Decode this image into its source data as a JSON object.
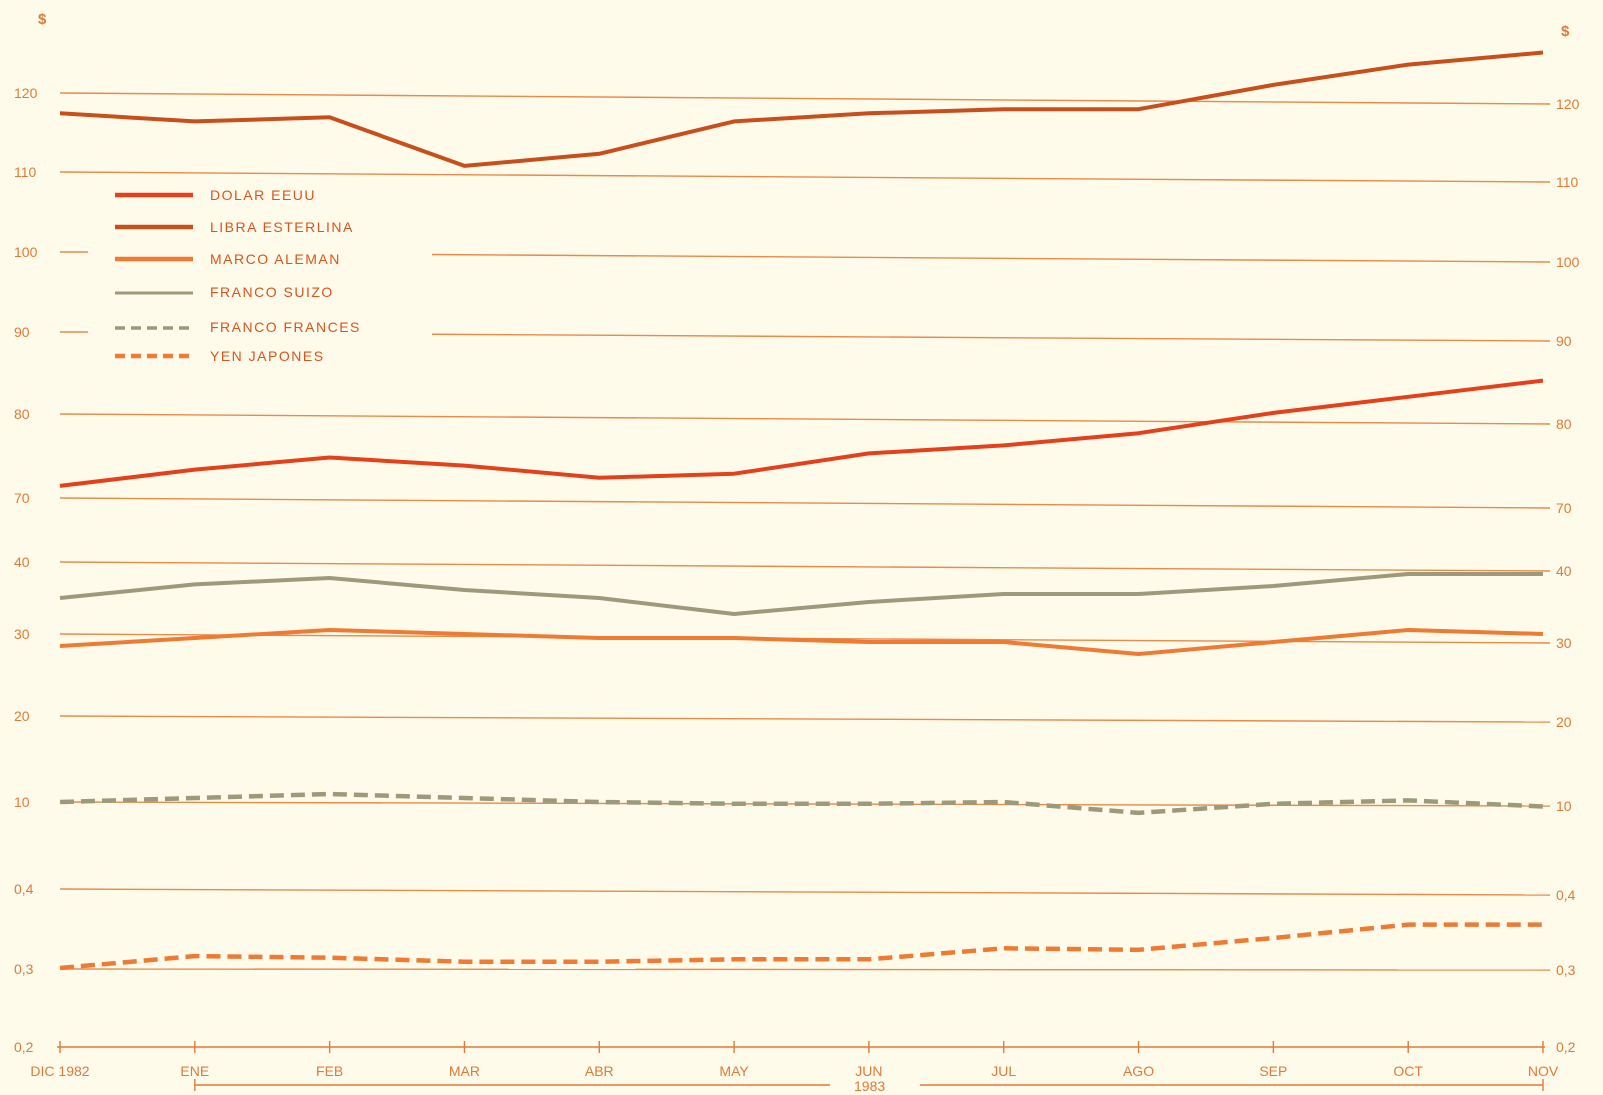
{
  "chart_data": {
    "type": "line",
    "currency_symbol": "$",
    "categories": [
      "DIC 1982",
      "ENE",
      "FEB",
      "MAR",
      "ABR",
      "MAY",
      "JUN",
      "JUL",
      "AGO",
      "SEP",
      "OCT",
      "NOV"
    ],
    "year_label": "1983",
    "y_ticks_left": [
      "120",
      "110",
      "100",
      "90",
      "80",
      "70",
      "40",
      "30",
      "20",
      "10",
      "0,4",
      "0,3",
      "0,2"
    ],
    "y_ticks_right": [
      "120",
      "110",
      "100",
      "90",
      "80",
      "70",
      "40",
      "30",
      "20",
      "10",
      "0,4",
      "0,3",
      "0,2"
    ],
    "axis_breaks": [
      [
        0.2,
        0.4
      ],
      [
        10,
        40
      ],
      [
        70,
        120
      ]
    ],
    "legend_placement": "top-left",
    "series": [
      {
        "name": "DOLAR EEUU",
        "color": "#e5401c",
        "style": "solid",
        "values": [
          71.5,
          73.5,
          75,
          74,
          72.5,
          73,
          75.5,
          76.5,
          78,
          80.5,
          82.5,
          84.5
        ]
      },
      {
        "name": "LIBRA ESTERLINA",
        "color": "#c84e1c",
        "style": "solid",
        "values": [
          117.5,
          116.5,
          117,
          111,
          112.5,
          116.5,
          117.5,
          118,
          118,
          121,
          123.5,
          125
        ]
      },
      {
        "name": "MARCO ALEMAN",
        "color": "#ee7a33",
        "style": "solid",
        "values": [
          29.5,
          30.5,
          31.5,
          31,
          30.5,
          30.5,
          30,
          30,
          28.5,
          30,
          31.5,
          31
        ]
      },
      {
        "name": "FRANCO SUIZO",
        "color": "#9c9a7a",
        "style": "solid",
        "values": [
          35.5,
          37.2,
          38,
          36.5,
          35.5,
          33.5,
          35,
          36,
          36,
          37,
          38.5,
          38.5
        ]
      },
      {
        "name": "FRANCO FRANCES",
        "color": "#9c9a7a",
        "style": "dashed",
        "values": [
          10,
          10.5,
          11,
          10.5,
          10,
          9.8,
          9.8,
          10,
          8.8,
          9.8,
          10.2,
          9.5
        ]
      },
      {
        "name": "YEN JAPONES",
        "color": "#ee7a33",
        "style": "dashed",
        "values": [
          0.3,
          0.315,
          0.313,
          0.308,
          0.308,
          0.311,
          0.311,
          0.325,
          0.323,
          0.338,
          0.355,
          0.355
        ]
      }
    ]
  }
}
